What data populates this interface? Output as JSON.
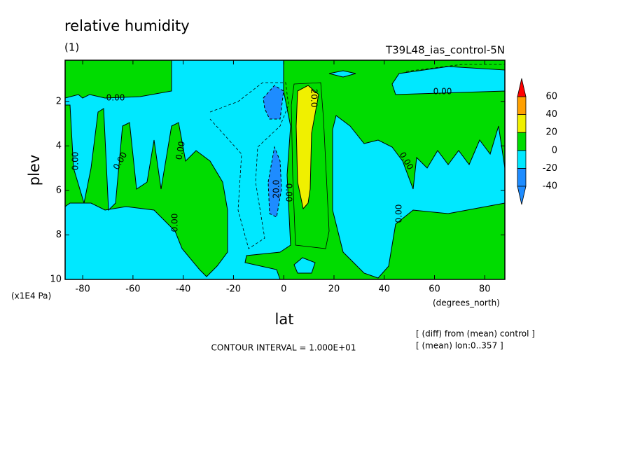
{
  "chart_data": {
    "type": "contour",
    "title": "relative humidity",
    "subtitle": "(1)",
    "run_label": "T39L48_ias_control-5N",
    "x_label": "lat",
    "x_unit": "(degrees_north)",
    "y_label": "plev",
    "y_unit": "(x1E4 Pa)",
    "contour_interval": "CONTOUR INTERVAL = 1.000E+01",
    "notes": [
      "[ (diff) from (mean) control ]",
      "[ (mean) lon:0..357 ]"
    ],
    "xlim": [
      -87,
      88
    ],
    "xticks": [
      -80,
      -60,
      -40,
      -20,
      0,
      20,
      40,
      60,
      80
    ],
    "ylim": [
      10,
      0.15
    ],
    "yticks": [
      2,
      4,
      6,
      8,
      10
    ],
    "levels": [
      -40,
      -20,
      0,
      20,
      40,
      60
    ],
    "colors": [
      "#1e8cff",
      "#1e8cff",
      "#00e8ff",
      "#00dc00",
      "#f0f000",
      "#ffa000",
      "#ff0000"
    ],
    "contour_labels": [
      "0.00",
      "0.00",
      "0.00",
      "0.00",
      "0.00",
      "0.00",
      "0.00",
      "0.00",
      "20.0",
      "0.00",
      "20.0"
    ]
  }
}
